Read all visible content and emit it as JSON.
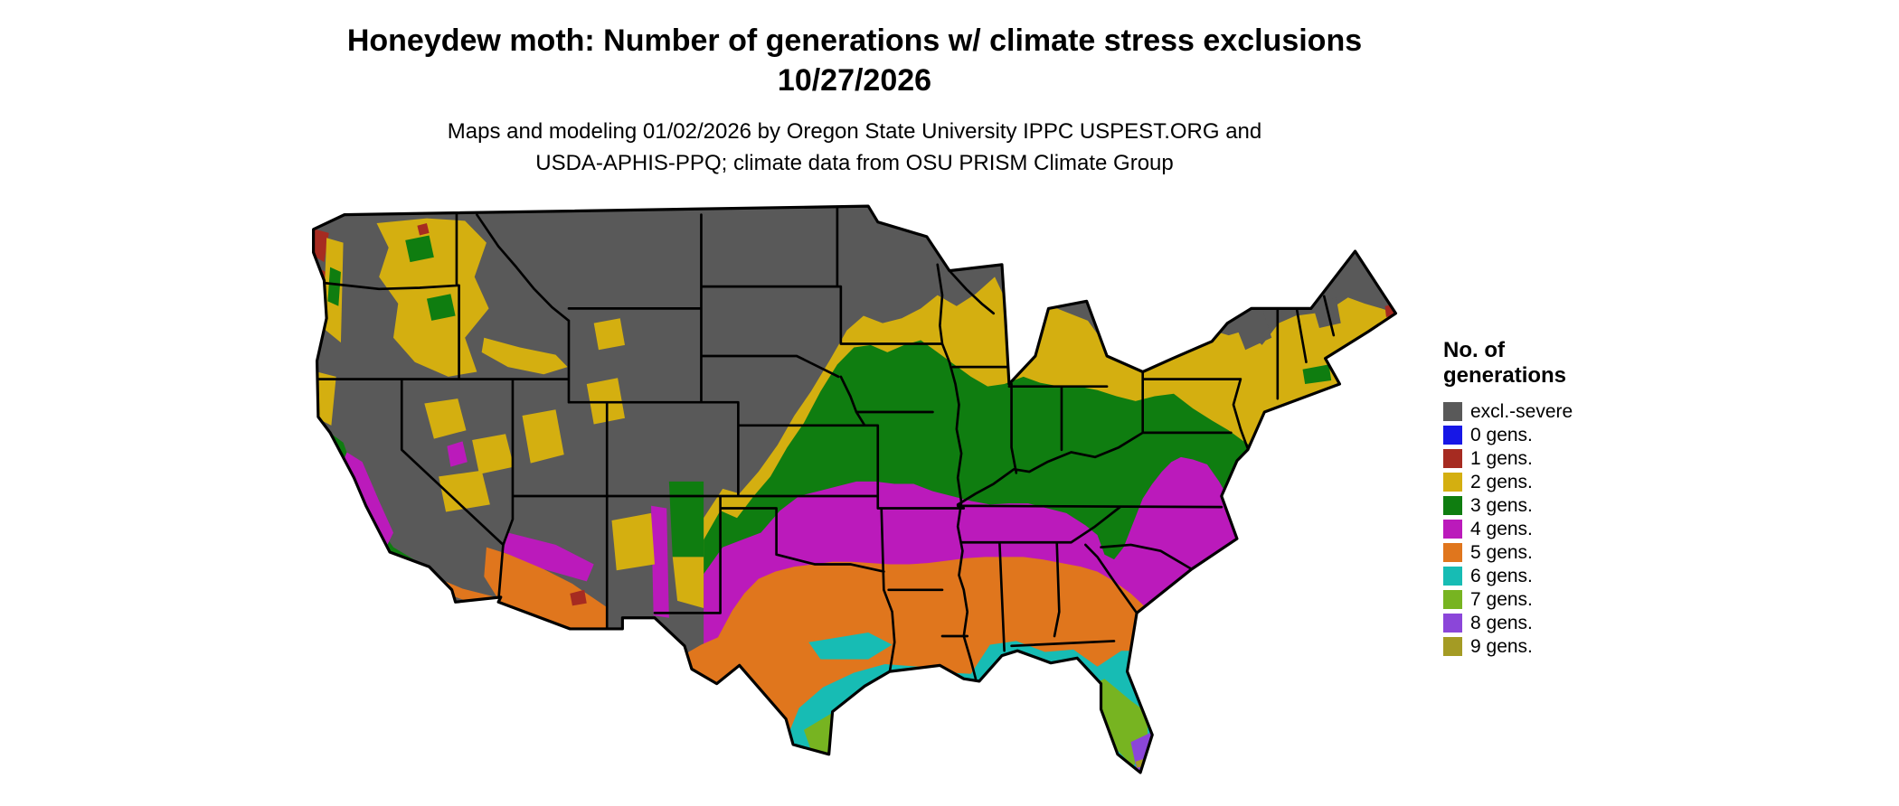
{
  "header": {
    "title_line1": "Honeydew moth: Number of generations w/ climate stress exclusions",
    "title_line2": "10/27/2026",
    "subtitle_line1": "Maps and modeling 01/02/2026 by Oregon State University IPPC USPEST.ORG and",
    "subtitle_line2": "USDA-APHIS-PPQ; climate data from OSU PRISM Climate Group"
  },
  "legend": {
    "title_line1": "No. of",
    "title_line2": "generations",
    "items": [
      {
        "label": "excl.-severe",
        "color": "#595959"
      },
      {
        "label": "0 gens.",
        "color": "#1717e6"
      },
      {
        "label": "1 gens.",
        "color": "#a62b21"
      },
      {
        "label": "2 gens.",
        "color": "#d4af10"
      },
      {
        "label": "3 gens.",
        "color": "#0f7d10"
      },
      {
        "label": "4 gens.",
        "color": "#bb1abb"
      },
      {
        "label": "5 gens.",
        "color": "#e0761d"
      },
      {
        "label": "6 gens.",
        "color": "#17bcb4"
      },
      {
        "label": "7 gens.",
        "color": "#77b421"
      },
      {
        "label": "8 gens.",
        "color": "#8b46d9"
      },
      {
        "label": "9 gens.",
        "color": "#a49b24"
      }
    ]
  },
  "map": {
    "region_name": "Continental United States",
    "border_color": "#000000",
    "background_color": "#ffffff"
  }
}
